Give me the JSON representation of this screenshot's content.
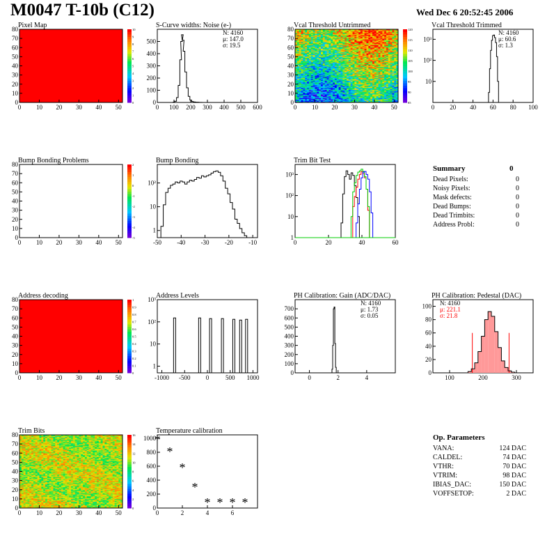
{
  "header": {
    "title": "M0047 T-10b (C12)",
    "timestamp": "Wed Dec  6 20:52:45 2006"
  },
  "chart_data": [
    {
      "id": "pixel-map",
      "type": "heatmap",
      "title": "Pixel Map",
      "xlim": [
        0,
        52
      ],
      "ylim": [
        0,
        80
      ],
      "x_ticks": [
        "0",
        "10",
        "20",
        "30",
        "40",
        "50"
      ],
      "y_ticks": [
        "0",
        "10",
        "20",
        "30",
        "40",
        "50",
        "60",
        "70",
        "80"
      ],
      "fill": "uniform-high",
      "fill_color": "#ff0000",
      "colorbar_ticks": [
        "0",
        "1",
        "2",
        "3",
        "4",
        "5",
        "6",
        "7",
        "8",
        "9",
        "10"
      ]
    },
    {
      "id": "scurve",
      "type": "histogram",
      "title": "S-Curve widths: Noise (e-)",
      "xlim": [
        0,
        600
      ],
      "ylim": [
        0,
        600
      ],
      "x_ticks": [
        "0",
        "100",
        "200",
        "300",
        "400",
        "500",
        "600"
      ],
      "y_ticks": [
        "0",
        "100",
        "200",
        "300",
        "400",
        "500"
      ],
      "x": [
        90,
        100,
        110,
        120,
        130,
        140,
        145,
        150,
        155,
        160,
        170,
        180,
        190,
        200,
        210,
        220,
        240,
        260,
        280
      ],
      "values": [
        0,
        3,
        10,
        40,
        140,
        350,
        500,
        555,
        510,
        420,
        250,
        120,
        50,
        20,
        8,
        4,
        2,
        1,
        0
      ],
      "stats": {
        "N": "N: 4160",
        "mean": "μ: 147.0",
        "sigma": "σ: 19.5"
      }
    },
    {
      "id": "vcal-untrimmed",
      "type": "heatmap",
      "title": "Vcal Threshold Untrimmed",
      "xlim": [
        0,
        52
      ],
      "ylim": [
        0,
        80
      ],
      "x_ticks": [
        "0",
        "10",
        "20",
        "30",
        "40",
        "50"
      ],
      "y_ticks": [
        "0",
        "10",
        "20",
        "30",
        "40",
        "50",
        "60",
        "70",
        "80"
      ],
      "fill": "gradient-top-high",
      "colorbar_ticks": [
        "85",
        "90",
        "95",
        "100",
        "105",
        "110",
        "115",
        "120"
      ]
    },
    {
      "id": "vcal-trimmed",
      "type": "histogram",
      "title": "Vcal Threshold Trimmed",
      "xlim": [
        0,
        100
      ],
      "log_y": true,
      "ylim": [
        1,
        3000
      ],
      "x_ticks": [
        "0",
        "20",
        "40",
        "60",
        "80",
        "100"
      ],
      "y_ticks": [
        "10",
        "10²",
        "10³"
      ],
      "x": [
        55,
        56,
        57,
        58,
        59,
        60,
        61,
        62,
        63,
        64,
        65,
        66
      ],
      "values": [
        0,
        3,
        40,
        300,
        900,
        1500,
        1600,
        1200,
        700,
        150,
        10,
        0
      ],
      "stats": {
        "N": "N: 4160",
        "mean": "μ: 60.6",
        "sigma": "σ:  1.3"
      }
    },
    {
      "id": "bump-problems",
      "type": "heatmap",
      "title": "Bump Bonding Problems",
      "xlim": [
        0,
        52
      ],
      "ylim": [
        0,
        80
      ],
      "x_ticks": [
        "0",
        "10",
        "20",
        "30",
        "40",
        "50"
      ],
      "y_ticks": [
        "0",
        "10",
        "20",
        "30",
        "40",
        "50",
        "60",
        "70",
        "80"
      ],
      "fill": "empty",
      "colorbar_ticks": [
        "-5",
        "-4",
        "-3",
        "-2",
        "-1",
        "0",
        "1",
        "2"
      ]
    },
    {
      "id": "bump-bonding",
      "type": "histogram",
      "title": "Bump Bonding",
      "xlim": [
        -50,
        -8
      ],
      "log_y": true,
      "ylim": [
        0.5,
        600
      ],
      "x_ticks": [
        "-50",
        "-40",
        "-30",
        "-20",
        "-10"
      ],
      "y_ticks": [
        "1",
        "10",
        "10²"
      ],
      "x": [
        -48,
        -47,
        -46,
        -45,
        -44,
        -43,
        -42,
        -41,
        -40,
        -39,
        -38,
        -37,
        -36,
        -35,
        -34,
        -33,
        -32,
        -31,
        -30,
        -29,
        -28,
        -27,
        -26,
        -25,
        -24,
        -23,
        -22,
        -21,
        -20,
        -19,
        -18,
        -17,
        -16,
        -15,
        -14,
        -13
      ],
      "values": [
        1.5,
        12,
        40,
        60,
        80,
        90,
        110,
        100,
        120,
        110,
        90,
        110,
        130,
        120,
        140,
        170,
        160,
        200,
        180,
        200,
        220,
        260,
        300,
        320,
        280,
        200,
        120,
        60,
        35,
        15,
        8,
        3,
        2,
        1.2,
        0.8,
        0.6
      ],
      "stats": null
    },
    {
      "id": "trim-bit-test",
      "type": "histogram",
      "title": "Trim Bit Test",
      "xlim": [
        0,
        60
      ],
      "log_y": true,
      "ylim": [
        1,
        3000
      ],
      "x_ticks": [
        "0",
        "20",
        "40",
        "60"
      ],
      "y_ticks": [
        "1",
        "10",
        "10²",
        "10³"
      ],
      "series": [
        {
          "color": "#000000",
          "x": [
            28,
            29,
            30,
            31,
            32,
            33,
            34,
            35,
            36,
            37,
            38,
            39
          ],
          "values": [
            5,
            120,
            800,
            1500,
            1000,
            600,
            1200,
            900,
            300,
            80,
            10,
            1
          ]
        },
        {
          "color": "#ff0000",
          "x": [
            35,
            36,
            37,
            38,
            39,
            40,
            41,
            42,
            43,
            44
          ],
          "values": [
            30,
            90,
            250,
            600,
            1000,
            1400,
            1100,
            700,
            200,
            20
          ]
        },
        {
          "color": "#00cc00",
          "x": [
            34,
            35,
            36,
            37,
            38,
            39,
            40,
            41,
            42,
            43,
            44
          ],
          "values": [
            10,
            150,
            400,
            900,
            1300,
            1500,
            1800,
            1400,
            800,
            200,
            30
          ]
        },
        {
          "color": "#0000ff",
          "x": [
            37,
            38,
            39,
            40,
            41,
            42,
            43,
            44,
            45,
            46,
            47
          ],
          "values": [
            5,
            40,
            200,
            700,
            1300,
            1400,
            1000,
            600,
            150,
            15,
            1
          ]
        }
      ],
      "stats": null
    },
    {
      "id": "address-decoding",
      "type": "heatmap",
      "title": "Address decoding",
      "xlim": [
        0,
        52
      ],
      "ylim": [
        0,
        80
      ],
      "x_ticks": [
        "0",
        "10",
        "20",
        "30",
        "40",
        "50"
      ],
      "y_ticks": [
        "0",
        "10",
        "20",
        "30",
        "40",
        "50",
        "60",
        "70",
        "80"
      ],
      "fill": "uniform-high",
      "fill_color": "#ff0000",
      "colorbar_ticks": [
        "0",
        "0.1",
        "0.2",
        "0.3",
        "0.4",
        "0.5",
        "0.6",
        "0.7",
        "0.8",
        "0.9",
        "1"
      ]
    },
    {
      "id": "address-levels",
      "type": "histogram",
      "title": "Address Levels",
      "xlim": [
        -1100,
        1100
      ],
      "log_y": true,
      "ylim": [
        0.5,
        1000
      ],
      "x_ticks": [
        "-1000",
        "-500",
        "0",
        "500",
        "1000"
      ],
      "y_ticks": [
        "1",
        "10",
        "10²",
        "10³"
      ],
      "peaks": [
        -720,
        -170,
        70,
        330,
        580,
        730,
        860
      ],
      "peak_values": [
        150,
        150,
        140,
        140,
        130,
        120,
        130
      ],
      "stats": null
    },
    {
      "id": "ph-gain",
      "type": "histogram",
      "title": "PH Calibration: Gain (ADC/DAC)",
      "xlim": [
        -1,
        6
      ],
      "ylim": [
        0,
        800
      ],
      "x_ticks": [
        "0",
        "2",
        "4"
      ],
      "y_ticks": [
        "0",
        "100",
        "200",
        "300",
        "400",
        "500",
        "600",
        "700"
      ],
      "x": [
        1.55,
        1.6,
        1.65,
        1.7,
        1.75,
        1.8,
        1.85,
        1.9
      ],
      "values": [
        0,
        40,
        300,
        700,
        720,
        320,
        60,
        0
      ],
      "stats": {
        "N": "N: 4160",
        "mean": "μ: 1.73",
        "sigma": "σ: 0.05"
      }
    },
    {
      "id": "ph-pedestal",
      "type": "histogram",
      "title": "PH Calibration: Pedestal (DAC)",
      "xlim": [
        50,
        350
      ],
      "ylim": [
        0,
        110
      ],
      "x_ticks": [
        "100",
        "200",
        "300"
      ],
      "y_ticks": [
        "0",
        "20",
        "40",
        "60",
        "80",
        "100"
      ],
      "x": [
        150,
        160,
        170,
        180,
        190,
        200,
        210,
        220,
        230,
        240,
        250,
        260,
        270,
        280,
        290,
        300
      ],
      "values": [
        0,
        2,
        6,
        15,
        32,
        55,
        80,
        92,
        85,
        62,
        38,
        18,
        8,
        3,
        1,
        0
      ],
      "cut_lines": [
        168,
        278
      ],
      "stats": {
        "N": "N: 4160",
        "mean": "μ: 221.1",
        "sigma": "σ: 21.8"
      }
    },
    {
      "id": "trim-bits",
      "type": "heatmap",
      "title": "Trim Bits",
      "xlim": [
        0,
        52
      ],
      "ylim": [
        0,
        80
      ],
      "x_ticks": [
        "0",
        "10",
        "20",
        "30",
        "40",
        "50"
      ],
      "y_ticks": [
        "0",
        "10",
        "20",
        "30",
        "40",
        "50",
        "60",
        "70",
        "80"
      ],
      "fill": "noise-mid",
      "colorbar_ticks": [
        "0",
        "2",
        "4",
        "6",
        "8",
        "10",
        "12",
        "14",
        "16"
      ]
    },
    {
      "id": "temperature",
      "type": "scatter",
      "title": "Temperature calibration",
      "xlim": [
        0,
        8
      ],
      "ylim": [
        0,
        1050
      ],
      "x_ticks": [
        "0",
        "2",
        "4",
        "6"
      ],
      "y_ticks": [
        "0",
        "200",
        "400",
        "600",
        "800",
        "1000"
      ],
      "x": [
        0,
        1,
        2,
        3,
        4,
        5,
        6,
        7
      ],
      "values": [
        990,
        820,
        590,
        310,
        90,
        90,
        90,
        90
      ]
    }
  ],
  "summary": {
    "title": "Summary",
    "value": "0",
    "rows": [
      {
        "label": "Dead Pixels:",
        "value": "0"
      },
      {
        "label": "Noisy Pixels:",
        "value": "0"
      },
      {
        "label": "Mask defects:",
        "value": "0"
      },
      {
        "label": "Dead Bumps:",
        "value": "0"
      },
      {
        "label": "Dead Trimbits:",
        "value": "0"
      },
      {
        "label": "Address Probl:",
        "value": "0"
      }
    ]
  },
  "op_parameters": {
    "title": "Op. Parameters",
    "rows": [
      {
        "label": "VANA:",
        "value": "124 DAC"
      },
      {
        "label": "CALDEL:",
        "value": "74 DAC"
      },
      {
        "label": "VTHR:",
        "value": "70 DAC"
      },
      {
        "label": "VTRIM:",
        "value": "98 DAC"
      },
      {
        "label": "IBIAS_DAC:",
        "value": "150 DAC"
      },
      {
        "label": "VOFFSETOP:",
        "value": "2 DAC"
      }
    ]
  }
}
